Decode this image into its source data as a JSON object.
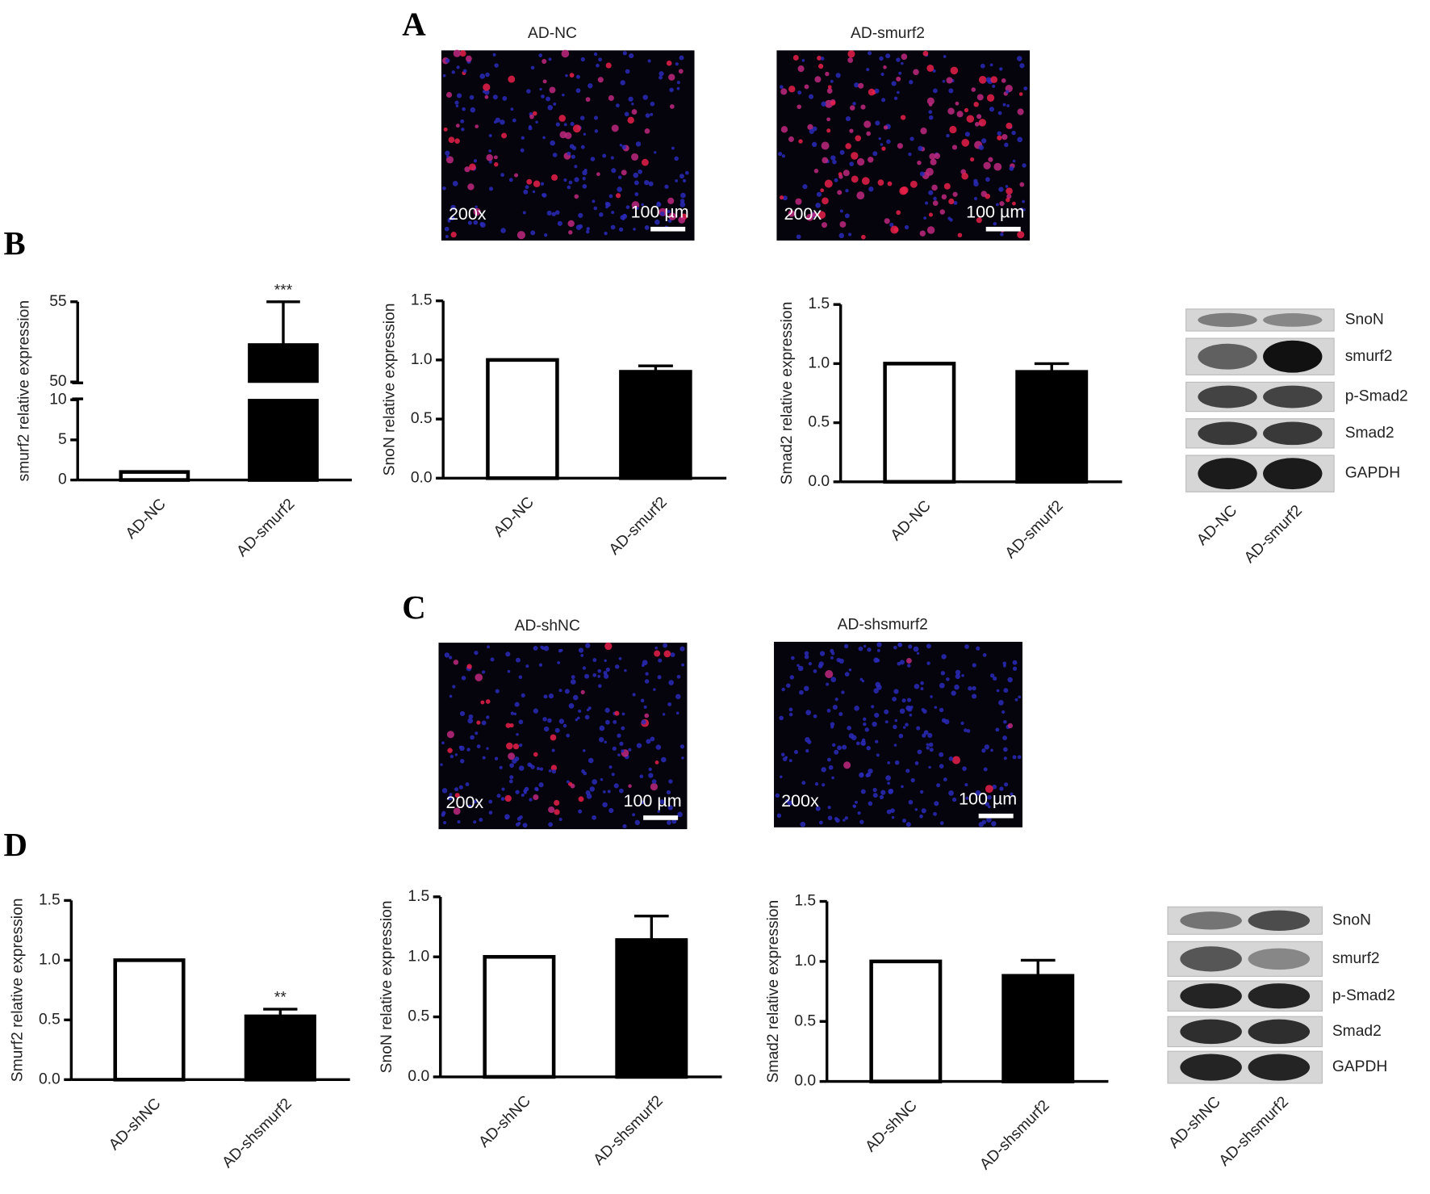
{
  "panel_labels": [
    "A",
    "B",
    "C",
    "D"
  ],
  "micrographs": [
    {
      "title": "AD-NC",
      "magnification": "200x",
      "scale": "100 µm"
    },
    {
      "title": "AD-smurf2",
      "magnification": "200x",
      "scale": "100 µm"
    },
    {
      "title": "AD-shNC",
      "magnification": "200x",
      "scale": "100 µm"
    },
    {
      "title": "AD-shsmurf2",
      "magnification": "200x",
      "scale": "100 µm"
    }
  ],
  "blots": [
    {
      "bands": [
        "SnoN",
        "smurf2",
        "p-Smad2",
        "Smad2",
        "GAPDH"
      ],
      "lanes": [
        "AD-NC",
        "AD-smurf2"
      ]
    },
    {
      "bands": [
        "SnoN",
        "smurf2",
        "p-Smad2",
        "Smad2",
        "GAPDH"
      ],
      "lanes": [
        "AD-shNC",
        "AD-shsmurf2"
      ]
    }
  ],
  "chart_data": [
    {
      "type": "bar",
      "ylabel": "smurf2 relative expression",
      "categories": [
        "AD-NC",
        "AD-smurf2"
      ],
      "values": [
        1,
        52.3
      ],
      "errors": [
        0,
        2.7
      ],
      "colors": [
        "#ffffff",
        "#000000"
      ],
      "value_annotations": [
        null,
        "***"
      ],
      "ylim": [
        0,
        55
      ],
      "ybreak": [
        10,
        50
      ],
      "yticks": [
        0,
        5,
        10,
        50,
        55
      ]
    },
    {
      "type": "bar",
      "ylabel": "SnoN relative expression",
      "categories": [
        "AD-NC",
        "AD-smurf2"
      ],
      "values": [
        1,
        0.9
      ],
      "errors": [
        0,
        0.05
      ],
      "colors": [
        "#ffffff",
        "#000000"
      ],
      "ylim": [
        0,
        1.5
      ],
      "yticks": [
        {
          "value": 0,
          "label": "0.0"
        },
        0.5,
        {
          "value": 1,
          "label": "1.0"
        },
        1.5
      ]
    },
    {
      "type": "bar",
      "ylabel": "Smad2 relative expression",
      "categories": [
        "AD-NC",
        "AD-smurf2"
      ],
      "values": [
        1,
        0.93
      ],
      "errors": [
        0,
        0.07
      ],
      "colors": [
        "#ffffff",
        "#000000"
      ],
      "ylim": [
        0,
        1.5
      ],
      "yticks": [
        {
          "value": 0,
          "label": "0.0"
        },
        0.5,
        {
          "value": 1,
          "label": "1.0"
        },
        1.5
      ]
    },
    {
      "type": "bar",
      "ylabel": "Smurf2 relative expression",
      "categories": [
        "AD-shNC",
        "AD-shsmurf2"
      ],
      "values": [
        1,
        0.53
      ],
      "errors": [
        0,
        0.06
      ],
      "colors": [
        "#ffffff",
        "#000000"
      ],
      "value_annotations": [
        null,
        "**"
      ],
      "ylim": [
        0,
        1.5
      ],
      "yticks": [
        {
          "value": 0,
          "label": "0.0"
        },
        0.5,
        {
          "value": 1,
          "label": "1.0"
        },
        1.5
      ]
    },
    {
      "type": "bar",
      "ylabel": "SnoN relative expression",
      "categories": [
        "AD-shNC",
        "AD-shsmurf2"
      ],
      "values": [
        1,
        1.14
      ],
      "errors": [
        0,
        0.2
      ],
      "colors": [
        "#ffffff",
        "#000000"
      ],
      "ylim": [
        0,
        1.5
      ],
      "yticks": [
        {
          "value": 0,
          "label": "0.0"
        },
        0.5,
        {
          "value": 1,
          "label": "1.0"
        },
        1.5
      ]
    },
    {
      "type": "bar",
      "ylabel": "Smad2 relative expression",
      "categories": [
        "AD-shNC",
        "AD-shsmurf2"
      ],
      "values": [
        1,
        0.88
      ],
      "errors": [
        0,
        0.13
      ],
      "colors": [
        "#ffffff",
        "#000000"
      ],
      "ylim": [
        0,
        1.5
      ],
      "yticks": [
        {
          "value": 0,
          "label": "0.0"
        },
        0.5,
        {
          "value": 1,
          "label": "1.0"
        },
        1.5
      ]
    }
  ]
}
